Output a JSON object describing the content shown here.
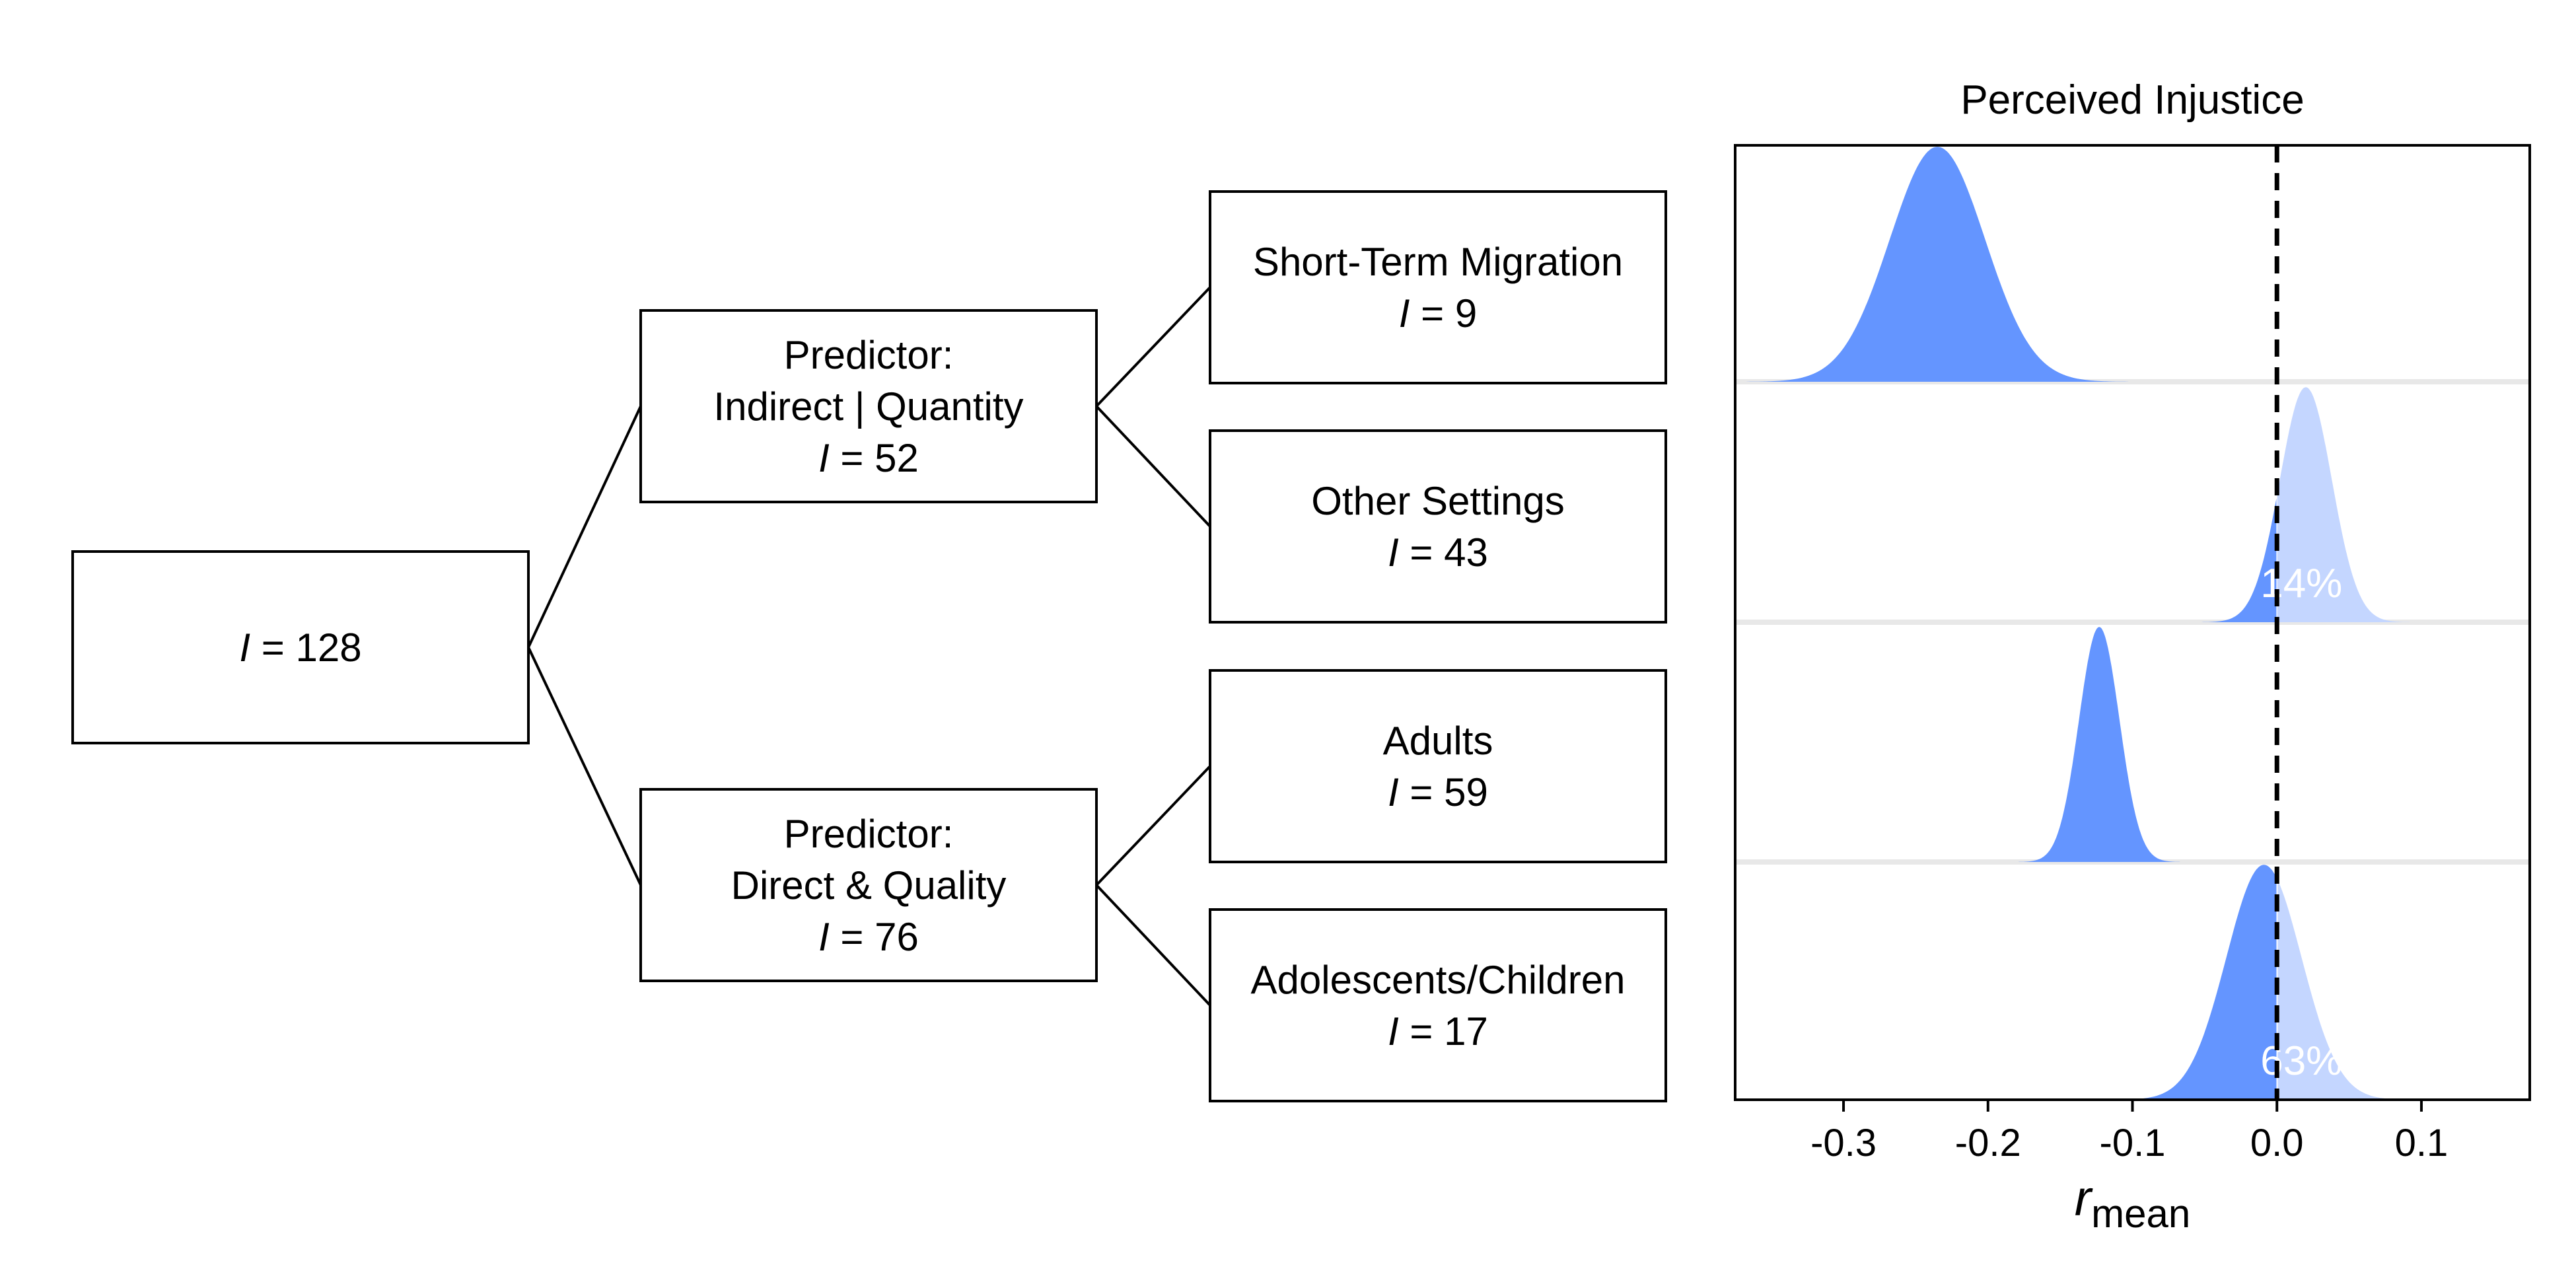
{
  "tree": {
    "root": {
      "prefix": "I",
      "text": " = 128"
    },
    "branches": [
      {
        "lines": [
          "Predictor:",
          "Indirect | Quantity"
        ],
        "count": {
          "prefix": "I",
          "text": " = 52"
        },
        "children": [
          {
            "lines": [
              "Short-Term Migration"
            ],
            "count": {
              "prefix": "I",
              "text": " = 9"
            }
          },
          {
            "lines": [
              "Other Settings"
            ],
            "count": {
              "prefix": "I",
              "text": " = 43"
            }
          }
        ]
      },
      {
        "lines": [
          "Predictor:",
          "Direct & Quality"
        ],
        "count": {
          "prefix": "I",
          "text": " = 76"
        },
        "children": [
          {
            "lines": [
              "Adults"
            ],
            "count": {
              "prefix": "I",
              "text": " = 59"
            }
          },
          {
            "lines": [
              "Adolescents/Children"
            ],
            "count": {
              "prefix": "I",
              "text": " = 17"
            }
          }
        ]
      }
    ]
  },
  "chart_data": {
    "type": "area",
    "title": "Perceived Injustice",
    "xlabel": {
      "main": "r",
      "sub": "mean"
    },
    "xlim": [
      -0.375,
      0.175
    ],
    "xticks": [
      -0.3,
      -0.2,
      -0.1,
      0.0,
      0.1
    ],
    "xtick_labels": [
      "-0.3",
      "-0.2",
      "-0.1",
      "0.0",
      "0.1"
    ],
    "reference_line": 0.0,
    "colors": {
      "negative": "#6495ff",
      "positive": "#c4d6ff",
      "reference": "#000000"
    },
    "series": [
      {
        "mean": -0.235,
        "sd": 0.033,
        "label": ""
      },
      {
        "mean": 0.02,
        "sd": 0.018,
        "label": "14%"
      },
      {
        "mean": -0.123,
        "sd": 0.014,
        "label": ""
      },
      {
        "mean": -0.009,
        "sd": 0.026,
        "label": "63%"
      }
    ]
  }
}
